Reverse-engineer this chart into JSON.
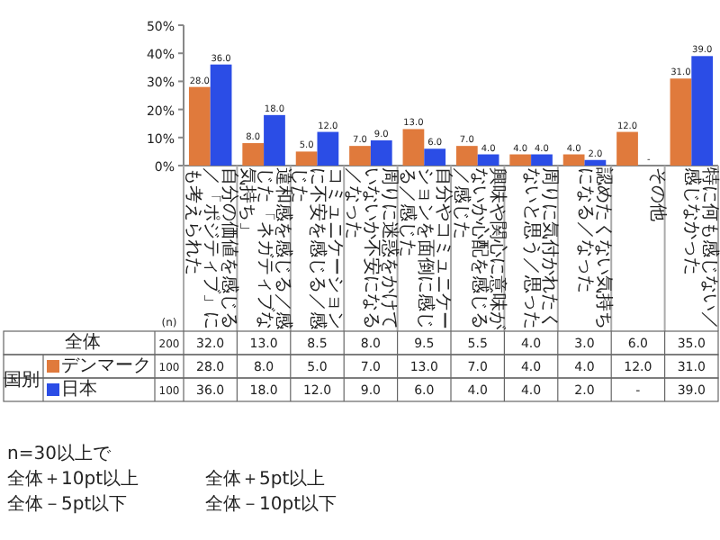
{
  "chart_data": {
    "type": "bar",
    "categories": [
      "自分の価値を感じる／「ポジティブ」にも考えられた",
      "違和感を感じる／感じた「ネガティブな気持ち」",
      "コミュニケーションに不安を感じる／感じた",
      "周りに迷惑をかけていないか不安になる／なった",
      "自分やコミュニケーションを面倒に感じる／感じた",
      "興味や関心に意味がないか心配を感じる／感じた",
      "周りに気付かれたくないと思う／思った",
      "認めたくない気持ちになる／なった",
      "その他",
      "特に何も感じない／感じなかった"
    ],
    "series": [
      {
        "name": "デンマーク",
        "color": "#e07a3c",
        "values": [
          28.0,
          8.0,
          5.0,
          7.0,
          13.0,
          7.0,
          4.0,
          4.0,
          12.0,
          31.0
        ],
        "value_labels": [
          "28.0",
          "8.0",
          "5.0",
          "7.0",
          "13.0",
          "7.0",
          "4.0",
          "4.0",
          "12.0",
          "31.0"
        ]
      },
      {
        "name": "日本",
        "color": "#2b4de6",
        "values": [
          36.0,
          18.0,
          12.0,
          9.0,
          6.0,
          4.0,
          4.0,
          2.0,
          null,
          39.0
        ],
        "value_labels": [
          "36.0",
          "18.0",
          "12.0",
          "9.0",
          "6.0",
          "4.0",
          "4.0",
          "2.0",
          "-",
          "39.0"
        ]
      }
    ],
    "ylim": [
      0,
      50
    ],
    "yticks": [
      {
        "value": 0,
        "label": "0%"
      },
      {
        "value": 10,
        "label": "10%"
      },
      {
        "value": 20,
        "label": "20%"
      },
      {
        "value": 30,
        "label": "30%"
      },
      {
        "value": 40,
        "label": "40%"
      },
      {
        "value": 50,
        "label": "50%"
      }
    ],
    "legend": "bottom",
    "annotations": [
      "(n)",
      "国別",
      "全体",
      "200",
      "32.0",
      "13.0",
      "8.5",
      "8.0",
      "9.5",
      "5.5",
      "4.0",
      "3.0",
      "6.0",
      "35.0",
      "100",
      "100",
      "n=30以上で",
      "全体＋10pt以上",
      "全体＋5pt以上",
      "全体－5pt以下",
      "全体－10pt以下"
    ]
  }
}
